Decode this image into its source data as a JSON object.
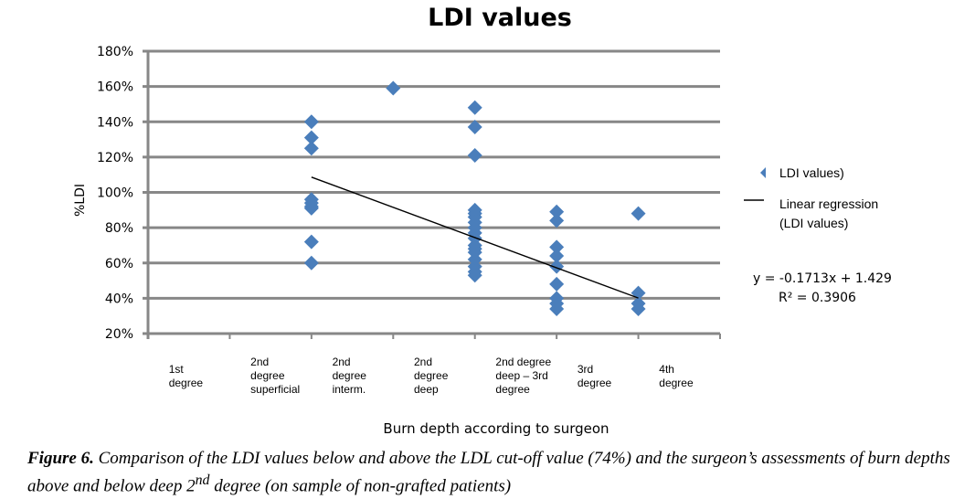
{
  "chart_data": {
    "type": "scatter",
    "title": "LDI values",
    "xlabel": "Burn depth according  to surgeon",
    "ylabel": "%LDI",
    "ylim": [
      0.2,
      1.8
    ],
    "xlim": [
      0,
      7
    ],
    "yticks": [
      "20%",
      "40%",
      "60%",
      "80%",
      "100%",
      "120%",
      "140%",
      "160%",
      "180%"
    ],
    "ytick_values": [
      0.2,
      0.4,
      0.6,
      0.8,
      1.0,
      1.2,
      1.4,
      1.6,
      1.8
    ],
    "grid": true,
    "categories": [
      {
        "x": 1,
        "lines": [
          "1st",
          "degree"
        ]
      },
      {
        "x": 2,
        "lines": [
          "2nd",
          "degree",
          "superficial"
        ]
      },
      {
        "x": 3,
        "lines": [
          "2nd",
          "degree",
          "interm."
        ]
      },
      {
        "x": 4,
        "lines": [
          "2nd",
          "degree",
          "deep"
        ]
      },
      {
        "x": 5,
        "lines": [
          "2nd degree",
          "deep – 3rd",
          "degree"
        ]
      },
      {
        "x": 6,
        "lines": [
          "3rd",
          "degree"
        ]
      },
      {
        "x": 7,
        "lines": [
          "4th",
          "degree"
        ]
      }
    ],
    "series": [
      {
        "name": "LDI values)",
        "color": "#4a7ebb",
        "points": [
          [
            2,
            1.4
          ],
          [
            2,
            1.31
          ],
          [
            2,
            1.25
          ],
          [
            2,
            0.96
          ],
          [
            2,
            0.94
          ],
          [
            2,
            0.92
          ],
          [
            2,
            0.91
          ],
          [
            2,
            0.72
          ],
          [
            2,
            0.6
          ],
          [
            3,
            1.59
          ],
          [
            4,
            1.48
          ],
          [
            4,
            1.37
          ],
          [
            4,
            1.21
          ],
          [
            4,
            0.9
          ],
          [
            4,
            0.88
          ],
          [
            4,
            0.86
          ],
          [
            4,
            0.83
          ],
          [
            4,
            0.8
          ],
          [
            4,
            0.77
          ],
          [
            4,
            0.74
          ],
          [
            4,
            0.7
          ],
          [
            4,
            0.68
          ],
          [
            4,
            0.66
          ],
          [
            4,
            0.62
          ],
          [
            4,
            0.58
          ],
          [
            4,
            0.55
          ],
          [
            4,
            0.53
          ],
          [
            5,
            0.89
          ],
          [
            5,
            0.84
          ],
          [
            5,
            0.69
          ],
          [
            5,
            0.64
          ],
          [
            5,
            0.58
          ],
          [
            5,
            0.48
          ],
          [
            5,
            0.4
          ],
          [
            5,
            0.37
          ],
          [
            5,
            0.34
          ],
          [
            6,
            0.88
          ],
          [
            6,
            0.43
          ],
          [
            6,
            0.37
          ],
          [
            6,
            0.34
          ]
        ]
      },
      {
        "name": "Linear     regression (LDI values)",
        "type": "line",
        "color": "#000000",
        "slope": -0.1713,
        "intercept": 1.429,
        "x_range": [
          2,
          6
        ]
      }
    ],
    "legend": {
      "position": "right",
      "items": [
        {
          "label_lines": [
            "LDI values)"
          ],
          "marker": "diamond"
        },
        {
          "label_lines": [
            "Linear     regression",
            "(LDI values)"
          ],
          "marker": "line"
        }
      ]
    },
    "annotations": [
      "y = -0.1713x + 1.429",
      "R² = 0.3906"
    ]
  },
  "caption": {
    "label": "Figure 6.",
    "text": " Comparison of the LDI values below and above the LDL cut-off value (74%) and the surgeon’s assessments of burn depths above and below deep 2",
    "superscript": "nd",
    "text_end": " degree (on sample of non-grafted patients)"
  }
}
